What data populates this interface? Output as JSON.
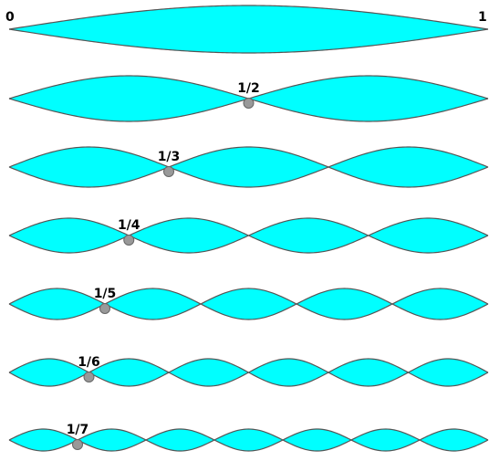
{
  "diagram": {
    "left_label": "0",
    "right_label": "1",
    "colors": {
      "fill": "#00FFFF",
      "stroke": "#555555",
      "node": "#999999"
    },
    "modes": [
      {
        "harmonic": 1,
        "node_label": ""
      },
      {
        "harmonic": 2,
        "node_label": "1/2"
      },
      {
        "harmonic": 3,
        "node_label": "1/3"
      },
      {
        "harmonic": 4,
        "node_label": "1/4"
      },
      {
        "harmonic": 5,
        "node_label": "1/5"
      },
      {
        "harmonic": 6,
        "node_label": "1/6"
      },
      {
        "harmonic": 7,
        "node_label": "1/7"
      }
    ]
  }
}
